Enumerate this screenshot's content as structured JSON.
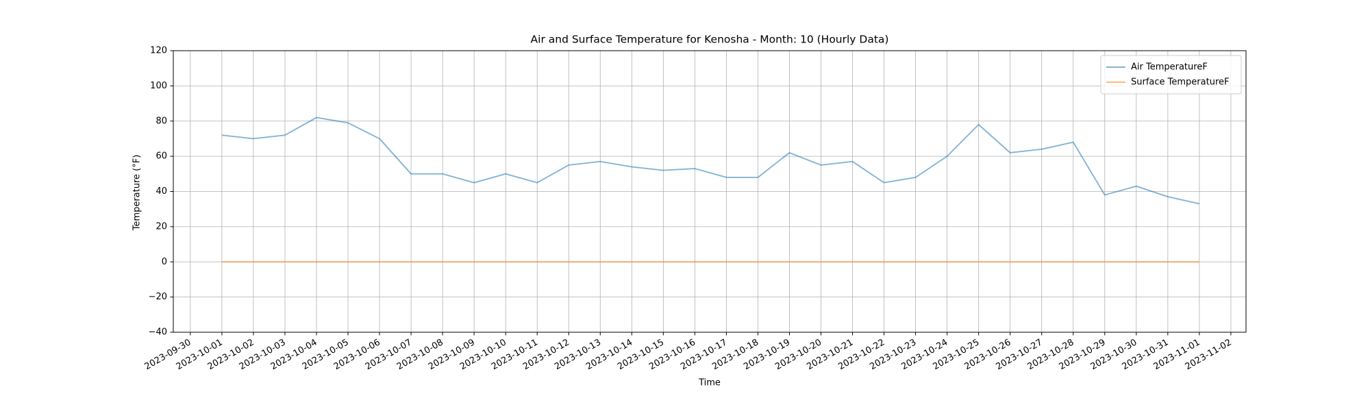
{
  "chart_data": {
    "type": "line",
    "title": "Air and Surface Temperature for Kenosha - Month: 10 (Hourly Data)",
    "x_label": "Time",
    "y_label": "Temperature (°F)",
    "x": [
      "2023-10-01",
      "2023-10-02",
      "2023-10-03",
      "2023-10-04",
      "2023-10-05",
      "2023-10-06",
      "2023-10-07",
      "2023-10-08",
      "2023-10-09",
      "2023-10-10",
      "2023-10-11",
      "2023-10-12",
      "2023-10-13",
      "2023-10-14",
      "2023-10-15",
      "2023-10-16",
      "2023-10-17",
      "2023-10-18",
      "2023-10-19",
      "2023-10-20",
      "2023-10-21",
      "2023-10-22",
      "2023-10-23",
      "2023-10-24",
      "2023-10-25",
      "2023-10-26",
      "2023-10-27",
      "2023-10-28",
      "2023-10-29",
      "2023-10-30",
      "2023-10-31",
      "2023-11-01"
    ],
    "series": [
      {
        "name": "Air TemperatureF",
        "color": "#1f77b4",
        "values": [
          72,
          70,
          72,
          82,
          79,
          70,
          50,
          50,
          45,
          50,
          45,
          55,
          57,
          54,
          52,
          53,
          48,
          48,
          62,
          55,
          57,
          45,
          48,
          60,
          78,
          62,
          64,
          68,
          38,
          43,
          37,
          33
        ]
      },
      {
        "name": "Surface TemperatureF",
        "color": "#ff7f0e",
        "values": [
          0,
          0,
          0,
          0,
          0,
          0,
          0,
          0,
          0,
          0,
          0,
          0,
          0,
          0,
          0,
          0,
          0,
          0,
          0,
          0,
          0,
          0,
          0,
          0,
          0,
          0,
          0,
          0,
          0,
          0,
          0,
          0
        ]
      }
    ],
    "ylim": [
      -40,
      120
    ],
    "yticks": [
      {
        "value": -40,
        "label": "−40"
      },
      {
        "value": -20,
        "label": "−20"
      },
      0,
      20,
      40,
      60,
      80,
      100,
      120
    ],
    "xticks": [
      "2023-09-30",
      "2023-10-01",
      "2023-10-02",
      "2023-10-03",
      "2023-10-04",
      "2023-10-05",
      "2023-10-06",
      "2023-10-07",
      "2023-10-08",
      "2023-10-09",
      "2023-10-10",
      "2023-10-11",
      "2023-10-12",
      "2023-10-13",
      "2023-10-14",
      "2023-10-15",
      "2023-10-16",
      "2023-10-17",
      "2023-10-18",
      "2023-10-19",
      "2023-10-20",
      "2023-10-21",
      "2023-10-22",
      "2023-10-23",
      "2023-10-24",
      "2023-10-25",
      "2023-10-26",
      "2023-10-27",
      "2023-10-28",
      "2023-10-29",
      "2023-10-30",
      "2023-10-31",
      "2023-11-01",
      "2023-11-02"
    ],
    "grid": true,
    "legend": "upper right"
  }
}
